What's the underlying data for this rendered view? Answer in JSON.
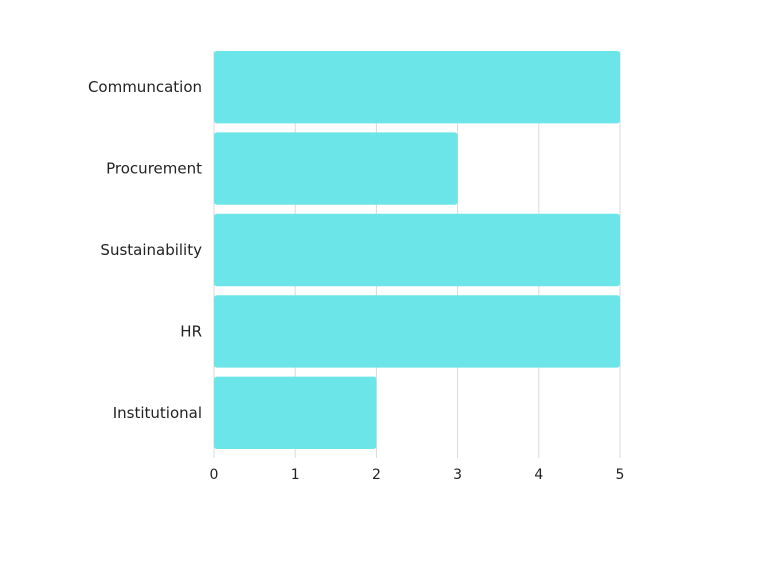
{
  "chart_data": {
    "type": "bar",
    "orientation": "horizontal",
    "categories": [
      "Communcation",
      "Procurement",
      "Sustainability",
      "HR",
      "Institutional"
    ],
    "values": [
      5,
      3,
      5,
      5,
      2
    ],
    "xlim": [
      0,
      5
    ],
    "xticks": [
      "0",
      "1",
      "2",
      "3",
      "4",
      "5"
    ],
    "grid": true,
    "legend": "none",
    "bar_color": "#6ce5e8",
    "grid_color": "#d9d9d9"
  }
}
